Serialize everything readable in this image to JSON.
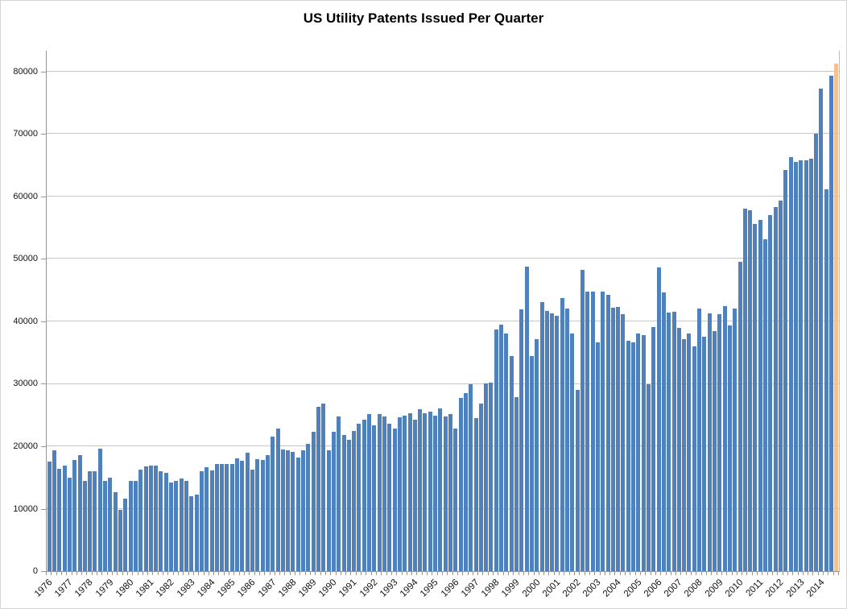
{
  "chart_data": {
    "type": "bar",
    "title": "US Utility Patents Issued Per Quarter",
    "ylabel": "",
    "xlabel": "",
    "grid": true,
    "legend": "none",
    "bar_color": "#4f81bd",
    "estimate_bar_color": "#fabf8f",
    "y_axis": {
      "min": 0,
      "max_tick": 80000,
      "tick_step": 10000,
      "tick_labels": [
        "0",
        "10000",
        "20000",
        "30000",
        "40000",
        "50000",
        "60000",
        "70000",
        "80000"
      ],
      "scale_top_value": 83350
    },
    "years": [
      {
        "year": 1976,
        "values": [
          17600,
          19400,
          16400,
          16900
        ]
      },
      {
        "year": 1977,
        "values": [
          15000,
          17800,
          18600,
          14400
        ]
      },
      {
        "year": 1978,
        "values": [
          16000,
          16000,
          19600,
          14400
        ]
      },
      {
        "year": 1979,
        "values": [
          15000,
          12600,
          9800,
          11600
        ]
      },
      {
        "year": 1980,
        "values": [
          14500,
          14500,
          16200,
          16800
        ]
      },
      {
        "year": 1981,
        "values": [
          16900,
          16900,
          16000,
          15800
        ]
      },
      {
        "year": 1982,
        "values": [
          14200,
          14500,
          14800,
          14400
        ]
      },
      {
        "year": 1983,
        "values": [
          12000,
          12300,
          16000,
          16600
        ]
      },
      {
        "year": 1984,
        "values": [
          16100,
          17100,
          17100,
          17100
        ]
      },
      {
        "year": 1985,
        "values": [
          17100,
          18100,
          17700,
          19000
        ]
      },
      {
        "year": 1986,
        "values": [
          16300,
          18000,
          17800,
          18600
        ]
      },
      {
        "year": 1987,
        "values": [
          21500,
          22800,
          19500,
          19400
        ]
      },
      {
        "year": 1988,
        "values": [
          19100,
          18200,
          19400,
          20400
        ]
      },
      {
        "year": 1989,
        "values": [
          22300,
          26300,
          26800,
          19400
        ]
      },
      {
        "year": 1990,
        "values": [
          22300,
          24800,
          21800,
          21000
        ]
      },
      {
        "year": 1991,
        "values": [
          22500,
          23600,
          24300,
          25200
        ]
      },
      {
        "year": 1992,
        "values": [
          23400,
          25200,
          24800,
          23600
        ]
      },
      {
        "year": 1993,
        "values": [
          22900,
          24700,
          24900,
          25300
        ]
      },
      {
        "year": 1994,
        "values": [
          24200,
          25900,
          25300,
          25600
        ]
      },
      {
        "year": 1995,
        "values": [
          24900,
          26100,
          24800,
          25100
        ]
      },
      {
        "year": 1996,
        "values": [
          22800,
          27700,
          28500,
          29900
        ]
      },
      {
        "year": 1997,
        "values": [
          24500,
          26800,
          30100,
          30200
        ]
      },
      {
        "year": 1998,
        "values": [
          38700,
          39500,
          38000,
          34400
        ]
      },
      {
        "year": 1999,
        "values": [
          27900,
          41900,
          48800,
          34500
        ]
      },
      {
        "year": 2000,
        "values": [
          37200,
          43100,
          41700,
          41300
        ]
      },
      {
        "year": 2001,
        "values": [
          40900,
          43800,
          42000,
          38100
        ]
      },
      {
        "year": 2002,
        "values": [
          29000,
          48200,
          44800,
          44800
        ]
      },
      {
        "year": 2003,
        "values": [
          36600,
          44800,
          44300,
          42200
        ]
      },
      {
        "year": 2004,
        "values": [
          42300,
          41100,
          36900,
          36700
        ]
      },
      {
        "year": 2005,
        "values": [
          38000,
          37800,
          30000,
          39100
        ]
      },
      {
        "year": 2006,
        "values": [
          48600,
          44700,
          41400,
          41600
        ]
      },
      {
        "year": 2007,
        "values": [
          39000,
          37200,
          38000,
          36000
        ]
      },
      {
        "year": 2008,
        "values": [
          42000,
          37500,
          41300,
          38500
        ]
      },
      {
        "year": 2009,
        "values": [
          41100,
          42500,
          39300,
          42100
        ]
      },
      {
        "year": 2010,
        "values": [
          49500,
          58100,
          57800,
          55600
        ]
      },
      {
        "year": 2011,
        "values": [
          56300,
          53200,
          57000,
          58300
        ]
      },
      {
        "year": 2012,
        "values": [
          59300,
          64200,
          66300,
          65500
        ]
      },
      {
        "year": 2013,
        "values": [
          65800,
          65800,
          66100,
          70000
        ]
      },
      {
        "year": 2014,
        "values": [
          77300,
          61200,
          79300
        ]
      }
    ],
    "estimate": {
      "year": 2014,
      "quarter": "Q4",
      "value": 81300
    }
  },
  "colors": {
    "bar": "#4f81bd",
    "estimate_bar": "#fabf8f",
    "gridline": "#c6c6c6",
    "axis": "#949494",
    "text": "#111111"
  }
}
